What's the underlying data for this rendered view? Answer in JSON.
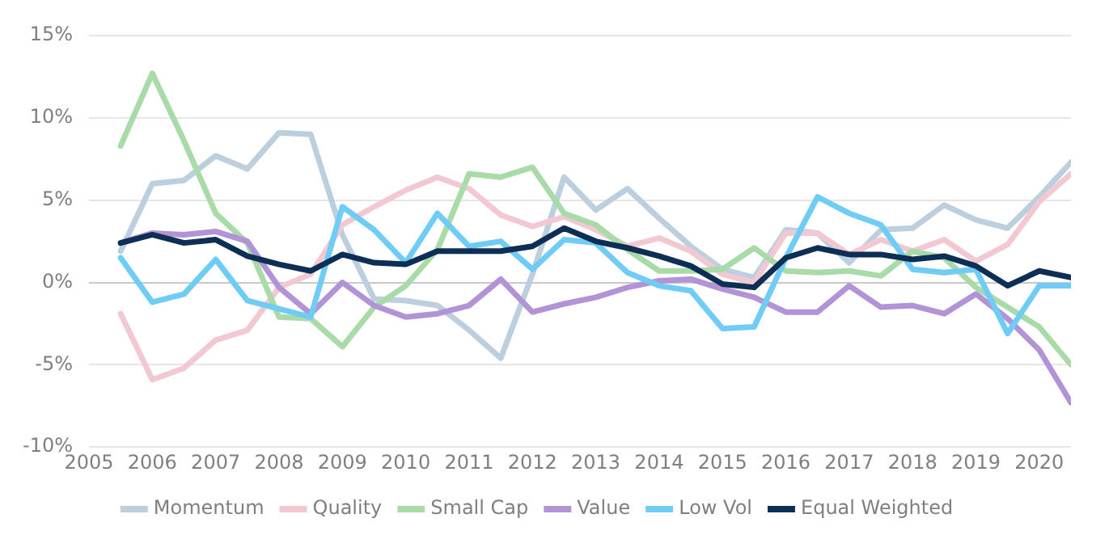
{
  "chart_data": {
    "type": "line",
    "x": [
      2005.5,
      2006,
      2006.5,
      2007,
      2007.5,
      2008,
      2008.5,
      2009,
      2009.5,
      2010,
      2010.5,
      2011,
      2011.5,
      2012,
      2012.5,
      2013,
      2013.5,
      2014,
      2014.5,
      2015,
      2015.5,
      2016,
      2016.5,
      2017,
      2017.5,
      2018,
      2018.5,
      2019,
      2019.5,
      2020,
      2020.5
    ],
    "xlim": [
      2005,
      2020.5
    ],
    "xticks": [
      2005,
      2006,
      2007,
      2008,
      2009,
      2010,
      2011,
      2012,
      2013,
      2014,
      2015,
      2016,
      2017,
      2018,
      2019,
      2020
    ],
    "ylim": [
      -10,
      15
    ],
    "yticks": [
      {
        "value": -10,
        "label": "-10%"
      },
      {
        "value": -5,
        "label": "-5%"
      },
      {
        "value": 0,
        "label": "0%"
      },
      {
        "value": 5,
        "label": "5%"
      },
      {
        "value": 10,
        "label": "10%"
      },
      {
        "value": 15,
        "label": "15%"
      }
    ],
    "grid": "y",
    "legend": "bottom",
    "marker": "none",
    "line_style": "solid",
    "series": [
      {
        "name": "Momentum",
        "color": "#bccfdf",
        "values": [
          1.9,
          6.0,
          6.2,
          7.7,
          6.9,
          9.1,
          9.0,
          2.9,
          -1.0,
          -1.1,
          -1.4,
          -2.9,
          -4.6,
          0.5,
          6.4,
          4.4,
          5.7,
          3.9,
          2.2,
          0.8,
          0.3,
          3.2,
          3.0,
          1.2,
          3.2,
          3.3,
          4.7,
          3.8,
          3.3,
          5.2,
          7.3
        ]
      },
      {
        "name": "Quality",
        "color": "#f2c9d2",
        "values": [
          -1.9,
          -5.9,
          -5.2,
          -3.5,
          -2.9,
          -0.3,
          0.5,
          3.5,
          4.6,
          5.6,
          6.4,
          5.7,
          4.1,
          3.4,
          4.0,
          3.2,
          2.2,
          2.7,
          1.9,
          0.5,
          0,
          3.0,
          3.0,
          1.7,
          2.6,
          1.9,
          2.6,
          1.3,
          2.3,
          4.9,
          6.6
        ]
      },
      {
        "name": "Small Cap",
        "color": "#a8dba8",
        "values": [
          8.3,
          12.7,
          8.6,
          4.2,
          2.4,
          -2.1,
          -2.2,
          -3.9,
          -1.5,
          -0.2,
          2.0,
          6.6,
          6.4,
          7.0,
          4.2,
          3.5,
          2.0,
          0.7,
          0.7,
          0.8,
          2.1,
          0.7,
          0.6,
          0.7,
          0.4,
          1.9,
          1.5,
          -0.3,
          -1.5,
          -2.7,
          -5.0
        ]
      },
      {
        "name": "Value",
        "color": "#b294d6",
        "values": [
          2.4,
          3.0,
          2.9,
          3.1,
          2.5,
          -0.3,
          -1.9,
          0,
          -1.4,
          -2.1,
          -1.9,
          -1.4,
          0.2,
          -1.8,
          -1.3,
          -0.9,
          -0.3,
          0.1,
          0.2,
          -0.4,
          -0.9,
          -1.8,
          -1.8,
          -0.2,
          -1.5,
          -1.4,
          -1.9,
          -0.7,
          -2.2,
          -4.1,
          -7.3
        ]
      },
      {
        "name": "Low Vol",
        "color": "#6fcdf5",
        "values": [
          1.5,
          -1.2,
          -0.7,
          1.4,
          -1.1,
          -1.6,
          -2.1,
          4.6,
          3.2,
          1.2,
          4.2,
          2.2,
          2.5,
          0.8,
          2.6,
          2.4,
          0.6,
          -0.2,
          -0.5,
          -2.8,
          -2.7,
          1.5,
          5.2,
          4.2,
          3.5,
          0.8,
          0.6,
          0.8,
          -3.1,
          -0.2,
          -0.2
        ]
      },
      {
        "name": "Equal Weighted",
        "color": "#0d2f55",
        "values": [
          2.4,
          2.9,
          2.4,
          2.6,
          1.6,
          1.1,
          0.7,
          1.7,
          1.2,
          1.1,
          1.9,
          1.9,
          1.9,
          2.2,
          3.3,
          2.5,
          2.1,
          1.6,
          1.0,
          -0.1,
          -0.3,
          1.5,
          2.1,
          1.7,
          1.7,
          1.4,
          1.6,
          1.0,
          -0.2,
          0.7,
          0.3
        ]
      }
    ]
  }
}
